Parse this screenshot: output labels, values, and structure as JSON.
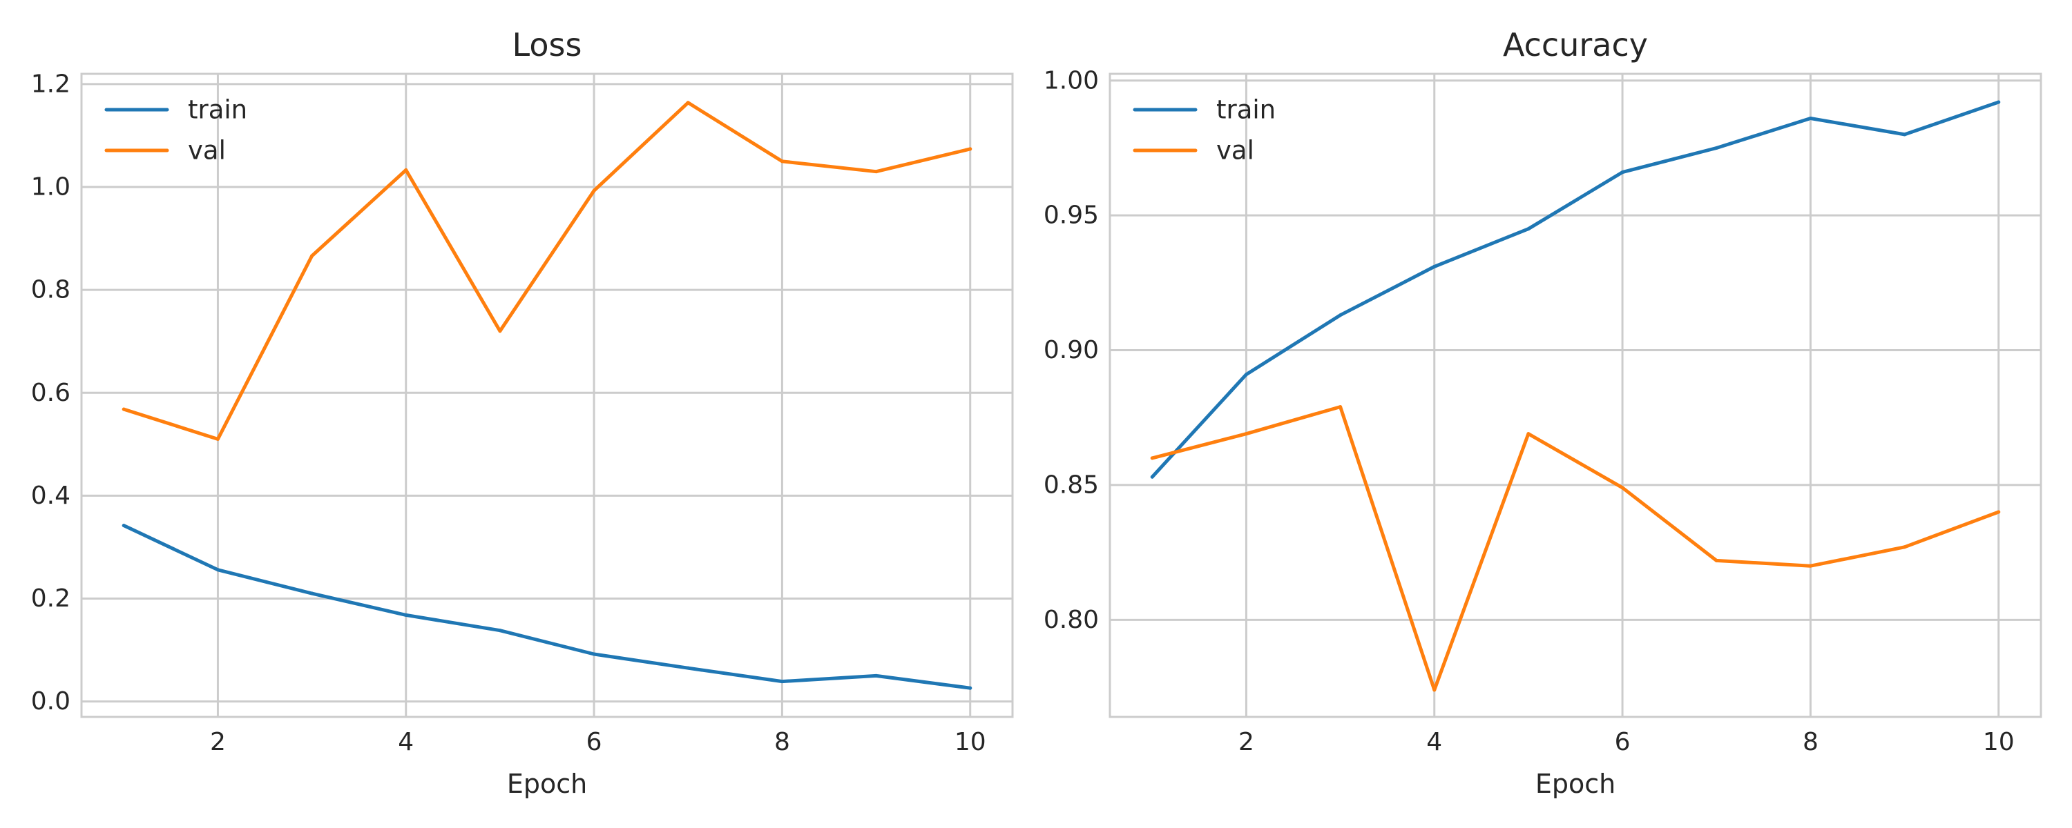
{
  "chart_data": [
    {
      "type": "line",
      "title": "Loss",
      "xlabel": "Epoch",
      "ylabel": "",
      "x": [
        1,
        2,
        3,
        4,
        5,
        6,
        7,
        8,
        9,
        10
      ],
      "xlim": [
        0.55,
        10.45
      ],
      "ylim": [
        -0.03,
        1.22
      ],
      "xticks": [
        2,
        4,
        6,
        8,
        10
      ],
      "xtick_labels": [
        "2",
        "4",
        "6",
        "8",
        "10"
      ],
      "yticks": [
        0.0,
        0.2,
        0.4,
        0.6,
        0.8,
        1.0,
        1.2
      ],
      "ytick_labels": [
        "0.0",
        "0.2",
        "0.4",
        "0.6",
        "0.8",
        "1.0",
        "1.2"
      ],
      "grid": true,
      "legend_position": "top-left",
      "series": [
        {
          "name": "train",
          "color": "#1f77b4",
          "values": [
            0.342,
            0.256,
            0.21,
            0.168,
            0.138,
            0.092,
            0.065,
            0.039,
            0.05,
            0.026
          ]
        },
        {
          "name": "val",
          "color": "#ff7f0e",
          "values": [
            0.568,
            0.51,
            0.866,
            1.033,
            0.72,
            0.993,
            1.164,
            1.05,
            1.03,
            1.074
          ]
        }
      ]
    },
    {
      "type": "line",
      "title": "Accuracy",
      "xlabel": "Epoch",
      "ylabel": "",
      "x": [
        1,
        2,
        3,
        4,
        5,
        6,
        7,
        8,
        9,
        10
      ],
      "xlim": [
        0.55,
        10.45
      ],
      "ylim": [
        0.764,
        1.0025
      ],
      "xticks": [
        2,
        4,
        6,
        8,
        10
      ],
      "xtick_labels": [
        "2",
        "4",
        "6",
        "8",
        "10"
      ],
      "yticks": [
        0.8,
        0.85,
        0.9,
        0.95,
        1.0
      ],
      "ytick_labels": [
        "0.80",
        "0.85",
        "0.90",
        "0.95",
        "1.00"
      ],
      "grid": true,
      "legend_position": "top-left",
      "series": [
        {
          "name": "train",
          "color": "#1f77b4",
          "values": [
            0.853,
            0.891,
            0.913,
            0.931,
            0.945,
            0.966,
            0.975,
            0.986,
            0.98,
            0.992
          ]
        },
        {
          "name": "val",
          "color": "#ff7f0e",
          "values": [
            0.86,
            0.869,
            0.879,
            0.774,
            0.869,
            0.849,
            0.822,
            0.82,
            0.827,
            0.84
          ]
        }
      ]
    }
  ]
}
